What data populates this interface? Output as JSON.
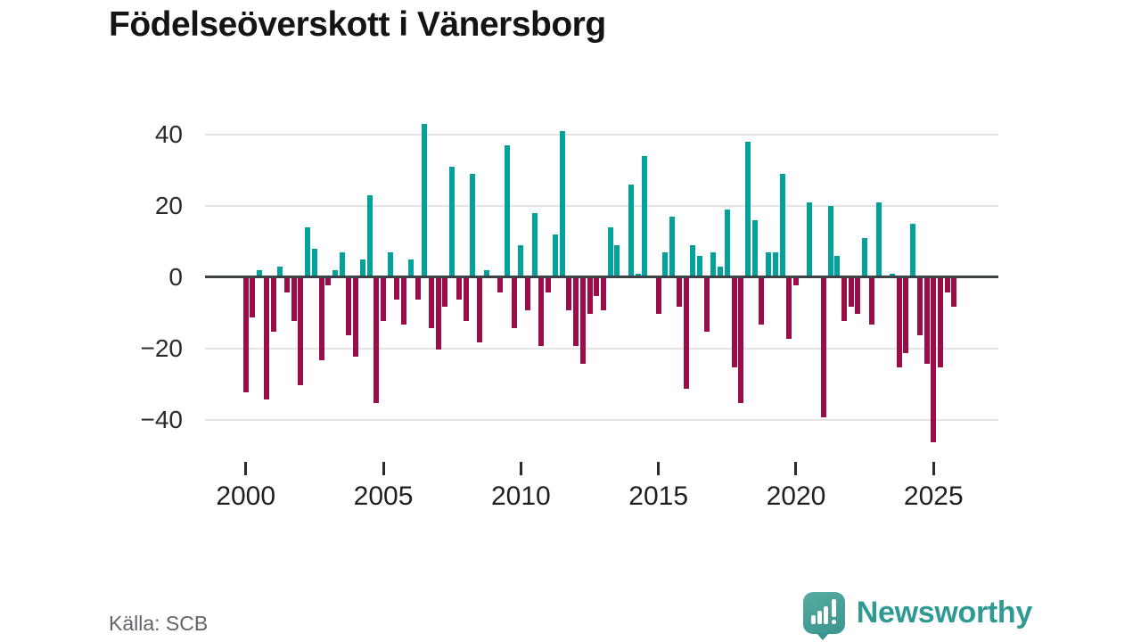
{
  "title": "Födelseöverskott i Vänersborg",
  "source": "Källa: SCB",
  "logo": {
    "brand": "Newsworthy"
  },
  "colors": {
    "positive": "#00A29B",
    "negative": "#9C0C49",
    "axis": "#3d4247",
    "gridline": "#e4e4e4",
    "title_text": "#141414",
    "tick_text": "#1f1f1f",
    "source_text": "#63636d",
    "brand_teal": "#2f9a93"
  },
  "chart_data": {
    "type": "bar",
    "frequency": "quarterly",
    "start_period": "2000-Q1",
    "end_period": "2025-Q4",
    "values": [
      -32,
      -11,
      2,
      -34,
      -15,
      3,
      -4,
      -12,
      -30,
      14,
      8,
      -23,
      -2,
      2,
      7,
      -16,
      -22,
      5,
      23,
      -35,
      -12,
      7,
      -6,
      -13,
      5,
      -6,
      43,
      -14,
      -20,
      -8,
      31,
      -6,
      -12,
      29,
      -18,
      2,
      0,
      -4,
      37,
      -14,
      9,
      -9,
      18,
      -19,
      -4,
      12,
      41,
      -9,
      -19,
      -24,
      -10,
      -5,
      -9,
      14,
      9,
      0,
      26,
      1,
      34,
      0,
      -10,
      7,
      17,
      -8,
      -31,
      9,
      6,
      -15,
      7,
      3,
      19,
      -25,
      -35,
      38,
      16,
      -13,
      7,
      7,
      29,
      -17,
      -2,
      0,
      21,
      0,
      -39,
      20,
      6,
      -12,
      -8,
      -10,
      11,
      -13,
      21,
      0,
      1,
      -25,
      -21,
      15,
      -16,
      -24,
      -46,
      -25,
      -4,
      -8
    ],
    "x_ticks": [
      {
        "label": "2000",
        "index": 0
      },
      {
        "label": "2005",
        "index": 20
      },
      {
        "label": "2010",
        "index": 40
      },
      {
        "label": "2015",
        "index": 60
      },
      {
        "label": "2020",
        "index": 80
      },
      {
        "label": "2025",
        "index": 100
      }
    ],
    "y_ticks": [
      40,
      20,
      0,
      -20,
      -40
    ],
    "ylim": [
      -48,
      44
    ],
    "grid": true,
    "legend": false,
    "xlabel": "",
    "ylabel": ""
  }
}
